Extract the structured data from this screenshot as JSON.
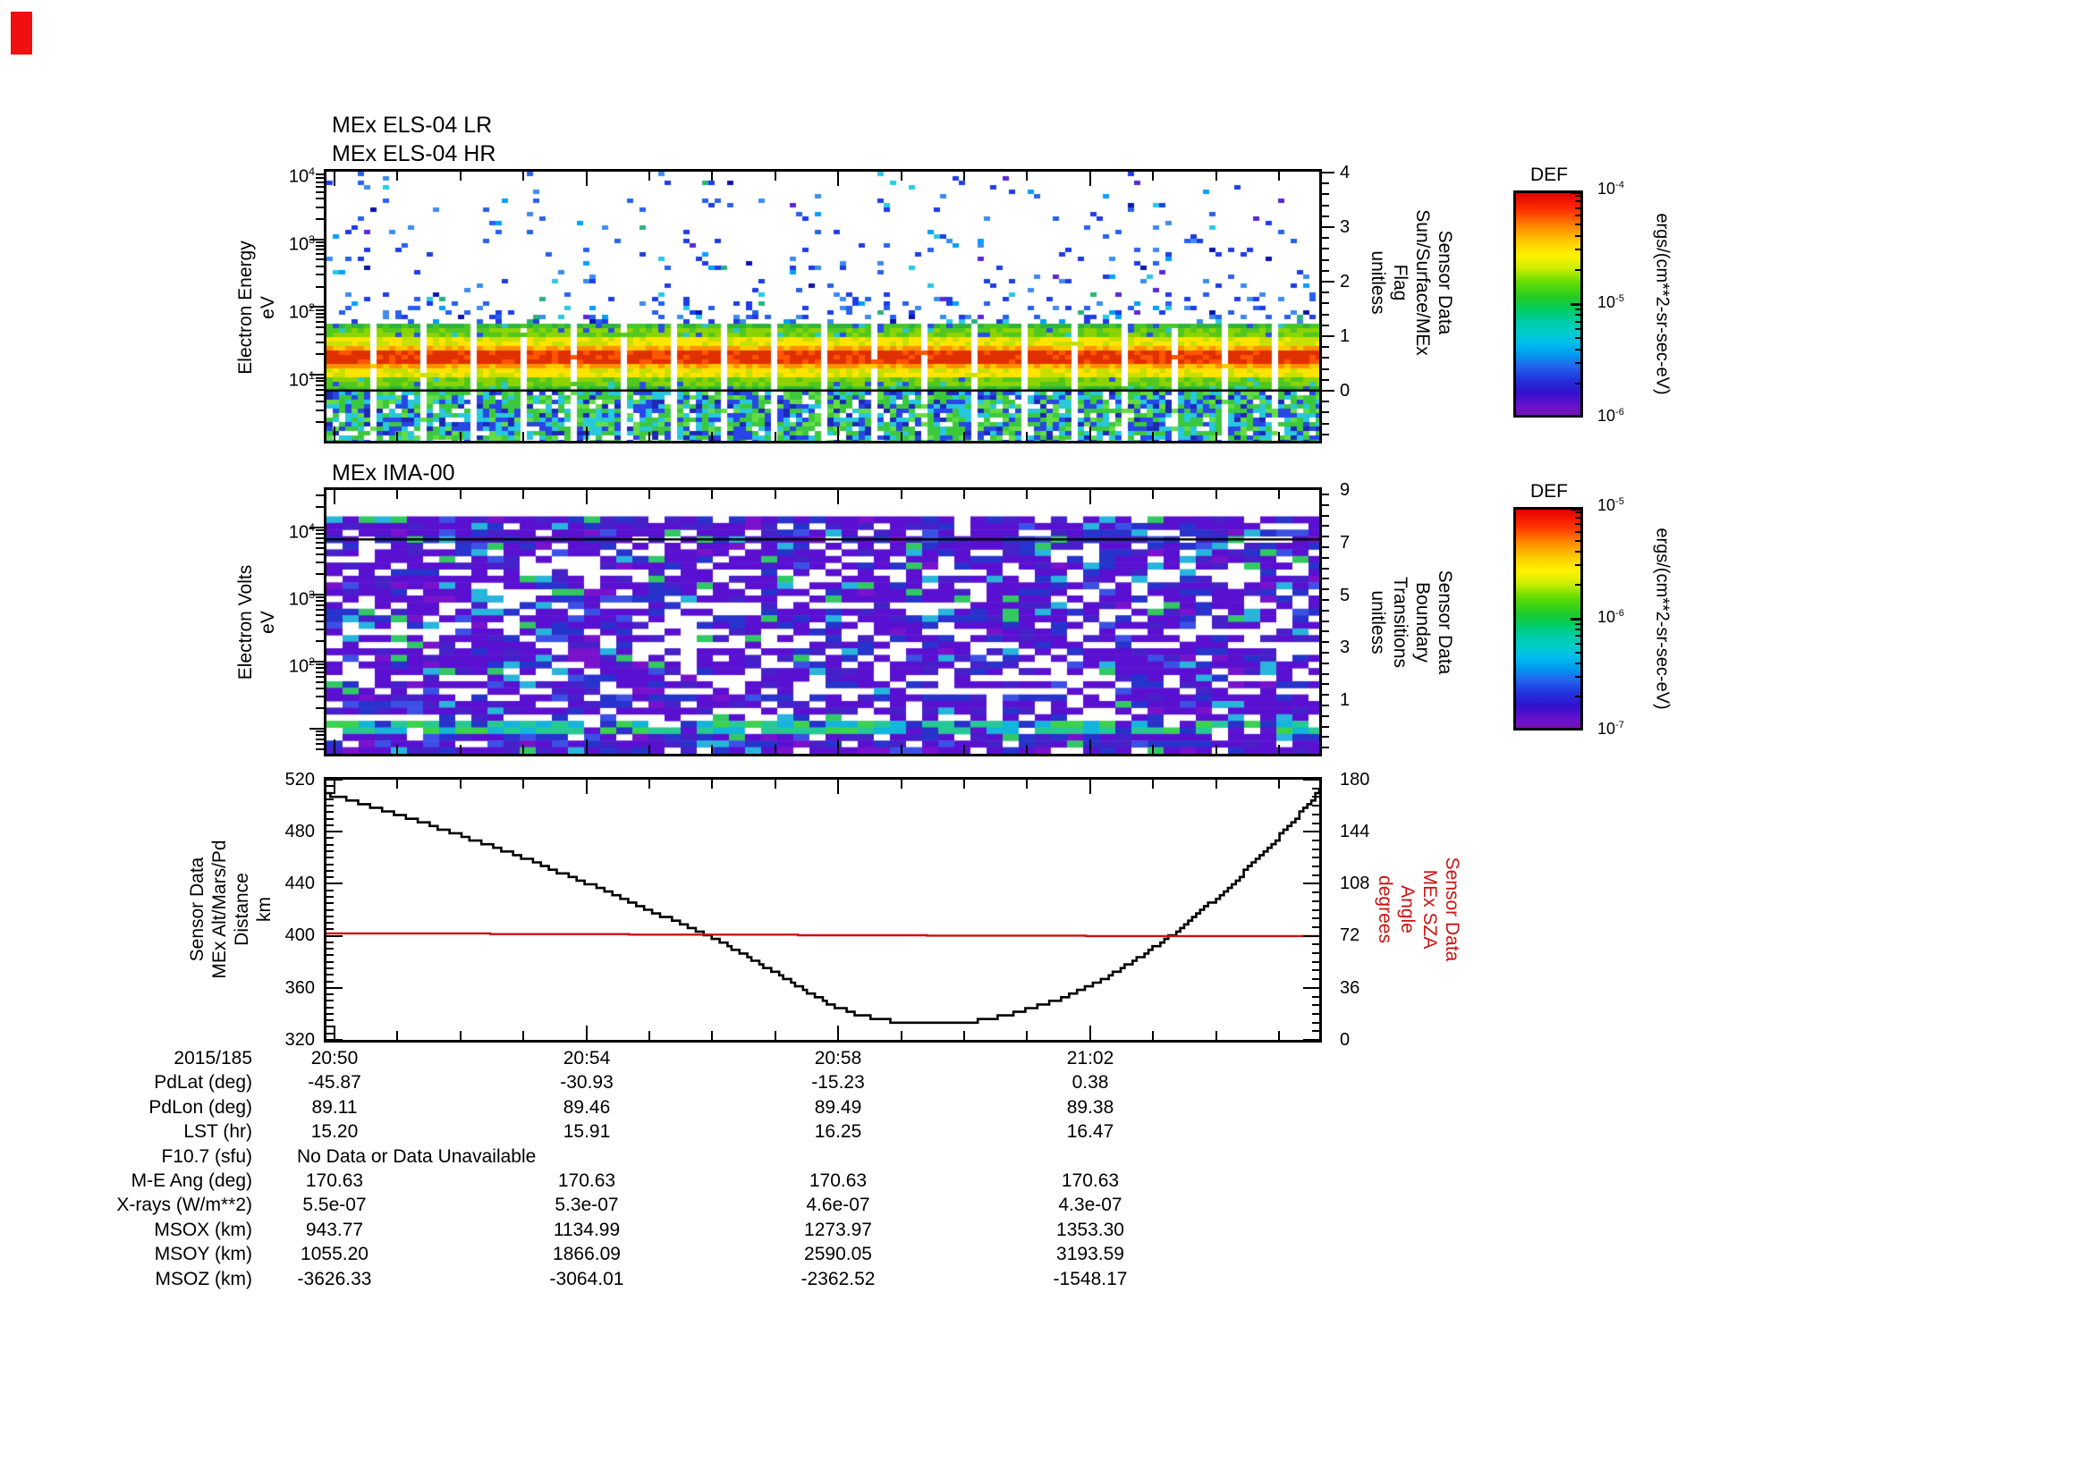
{
  "corner_marker": {
    "color": "#f01010"
  },
  "panels": {
    "els": {
      "title_lines": [
        "MEx ELS-04 LR",
        "MEx ELS-04 HR"
      ],
      "ylabel_lines": [
        "Electron Energy",
        "eV"
      ],
      "ytick_exponents": [
        "4",
        "3",
        "2",
        "1"
      ],
      "right_axis": {
        "ticks": [
          "4",
          "3",
          "2",
          "1",
          "0"
        ],
        "label_lines": [
          "Sensor Data",
          "Sun/Surface/MEx",
          "Flag",
          "unitless"
        ]
      }
    },
    "ima": {
      "title": "MEx IMA-00",
      "ylabel_lines": [
        "Electron Volts",
        "eV"
      ],
      "ytick_exponents": [
        "4",
        "3",
        "2"
      ],
      "right_axis": {
        "ticks": [
          "9",
          "7",
          "5",
          "3",
          "1"
        ],
        "label_lines": [
          "Sensor Data",
          "Boundary",
          "Transitions",
          "unitless"
        ]
      }
    },
    "alt": {
      "left_axis": {
        "ticks": [
          "520",
          "480",
          "440",
          "400",
          "360",
          "320"
        ],
        "label_lines": [
          "Sensor Data",
          "MEx Alt/Mars/Pd",
          "Distance",
          "km"
        ]
      },
      "right_axis": {
        "ticks": [
          "180",
          "144",
          "108",
          "72",
          "36",
          "0"
        ],
        "label_lines": [
          "Sensor Data",
          "MEx SZA",
          "Angle",
          "degrees"
        ],
        "color": "#cc1111"
      }
    }
  },
  "colorbars": [
    {
      "title": "DEF",
      "tick_exponents": [
        "-4",
        "-5",
        "-6"
      ],
      "unit": "ergs/(cm**2-sr-sec-eV)"
    },
    {
      "title": "DEF",
      "tick_exponents": [
        "-5",
        "-6",
        "-7"
      ],
      "unit": "ergs/(cm**2-sr-sec-eV)"
    }
  ],
  "table": {
    "rows": [
      {
        "label": "2015/185",
        "values": [
          "20:50",
          "20:54",
          "20:58",
          "21:02"
        ]
      },
      {
        "label": "PdLat (deg)",
        "values": [
          "-45.87",
          "-30.93",
          "-15.23",
          "0.38"
        ]
      },
      {
        "label": "PdLon (deg)",
        "values": [
          "89.11",
          "89.46",
          "89.49",
          "89.38"
        ]
      },
      {
        "label": "LST (hr)",
        "values": [
          "15.20",
          "15.91",
          "16.25",
          "16.47"
        ]
      },
      {
        "label": "F10.7 (sfu)",
        "span_value": "No Data or Data Unavailable"
      },
      {
        "label": "M-E Ang (deg)",
        "values": [
          "170.63",
          "170.63",
          "170.63",
          "170.63"
        ]
      },
      {
        "label": "X-rays (W/m**2)",
        "values": [
          "5.5e-07",
          "5.3e-07",
          "4.6e-07",
          "4.3e-07"
        ]
      },
      {
        "label": "MSOX (km)",
        "values": [
          "943.77",
          "1134.99",
          "1273.97",
          "1353.30"
        ]
      },
      {
        "label": "MSOY (km)",
        "values": [
          "1055.20",
          "1866.09",
          "2590.05",
          "3193.59"
        ]
      },
      {
        "label": "MSOZ (km)",
        "values": [
          "-3626.33",
          "-3064.01",
          "-2362.52",
          "-1548.17"
        ]
      }
    ]
  },
  "chart_data": [
    {
      "type": "heatmap",
      "title": "MEx ELS-04 LR / MEx ELS-04 HR",
      "xlabel": "time, 2015/185 20:50 to ~21:06",
      "ylabel": "Electron Energy eV",
      "y_scale": "log",
      "y_range": [
        1,
        10000
      ],
      "z_unit": "ergs/(cm**2-sr-sec-eV)",
      "z_range": [
        1e-06,
        0.0001
      ],
      "features": {
        "intense_band_eV": [
          8,
          60
        ],
        "peak_red_core_eV": [
          15,
          22
        ],
        "sparse_blue_counts_above_100eV": true,
        "horizontal_separator_line_eV": 6.5,
        "periodic_white_data_gap_columns": true
      }
    },
    {
      "type": "heatmap",
      "title": "MEx IMA-00",
      "ylabel": "Electron Volts eV",
      "y_scale": "log",
      "y_range": [
        10,
        30000
      ],
      "z_unit": "ergs/(cm**2-sr-sec-eV)",
      "z_range": [
        1e-07,
        1e-05
      ],
      "features": {
        "diffuse_purple_blue_low_flux": true,
        "cyan_green_band_near_bottom": true,
        "horizontal_separator_line_near_top": true
      }
    },
    {
      "type": "line",
      "x_ticks": [
        "20:50",
        "20:54",
        "20:58",
        "21:02"
      ],
      "date": "2015/185",
      "series": [
        {
          "name": "MEx Alt/Mars/Pd Distance (km)",
          "axis": "left",
          "color": "#000000",
          "ylim": [
            320,
            520
          ],
          "style": "staircase",
          "points_frac_km": [
            [
              0,
              509
            ],
            [
              0.05,
              498
            ],
            [
              0.1,
              486
            ],
            [
              0.15,
              473
            ],
            [
              0.2,
              459
            ],
            [
              0.25,
              444
            ],
            [
              0.3,
              428
            ],
            [
              0.35,
              411
            ],
            [
              0.4,
              394
            ],
            [
              0.45,
              372
            ],
            [
              0.48,
              358
            ],
            [
              0.51,
              346
            ],
            [
              0.54,
              338
            ],
            [
              0.57,
              334
            ],
            [
              0.6,
              332
            ],
            [
              0.63,
              332
            ],
            [
              0.66,
              335
            ],
            [
              0.7,
              342
            ],
            [
              0.74,
              352
            ],
            [
              0.78,
              366
            ],
            [
              0.82,
              384
            ],
            [
              0.86,
              406
            ],
            [
              0.9,
              432
            ],
            [
              0.94,
              461
            ],
            [
              0.97,
              486
            ],
            [
              1,
              512
            ]
          ]
        },
        {
          "name": "MEx SZA Angle (degrees)",
          "axis": "right",
          "color": "#cc1111",
          "ylim": [
            0,
            180
          ],
          "style": "step",
          "points_frac_deg": [
            [
              0,
              73.7
            ],
            [
              0.16,
              73.7
            ],
            [
              0.165,
              73.2
            ],
            [
              0.3,
              73.2
            ],
            [
              0.305,
              72.8
            ],
            [
              0.47,
              72.8
            ],
            [
              0.475,
              72.4
            ],
            [
              0.6,
              72.4
            ],
            [
              0.605,
              72.1
            ],
            [
              0.76,
              72.1
            ],
            [
              0.765,
              71.8
            ],
            [
              1,
              71.8
            ]
          ]
        }
      ]
    }
  ]
}
